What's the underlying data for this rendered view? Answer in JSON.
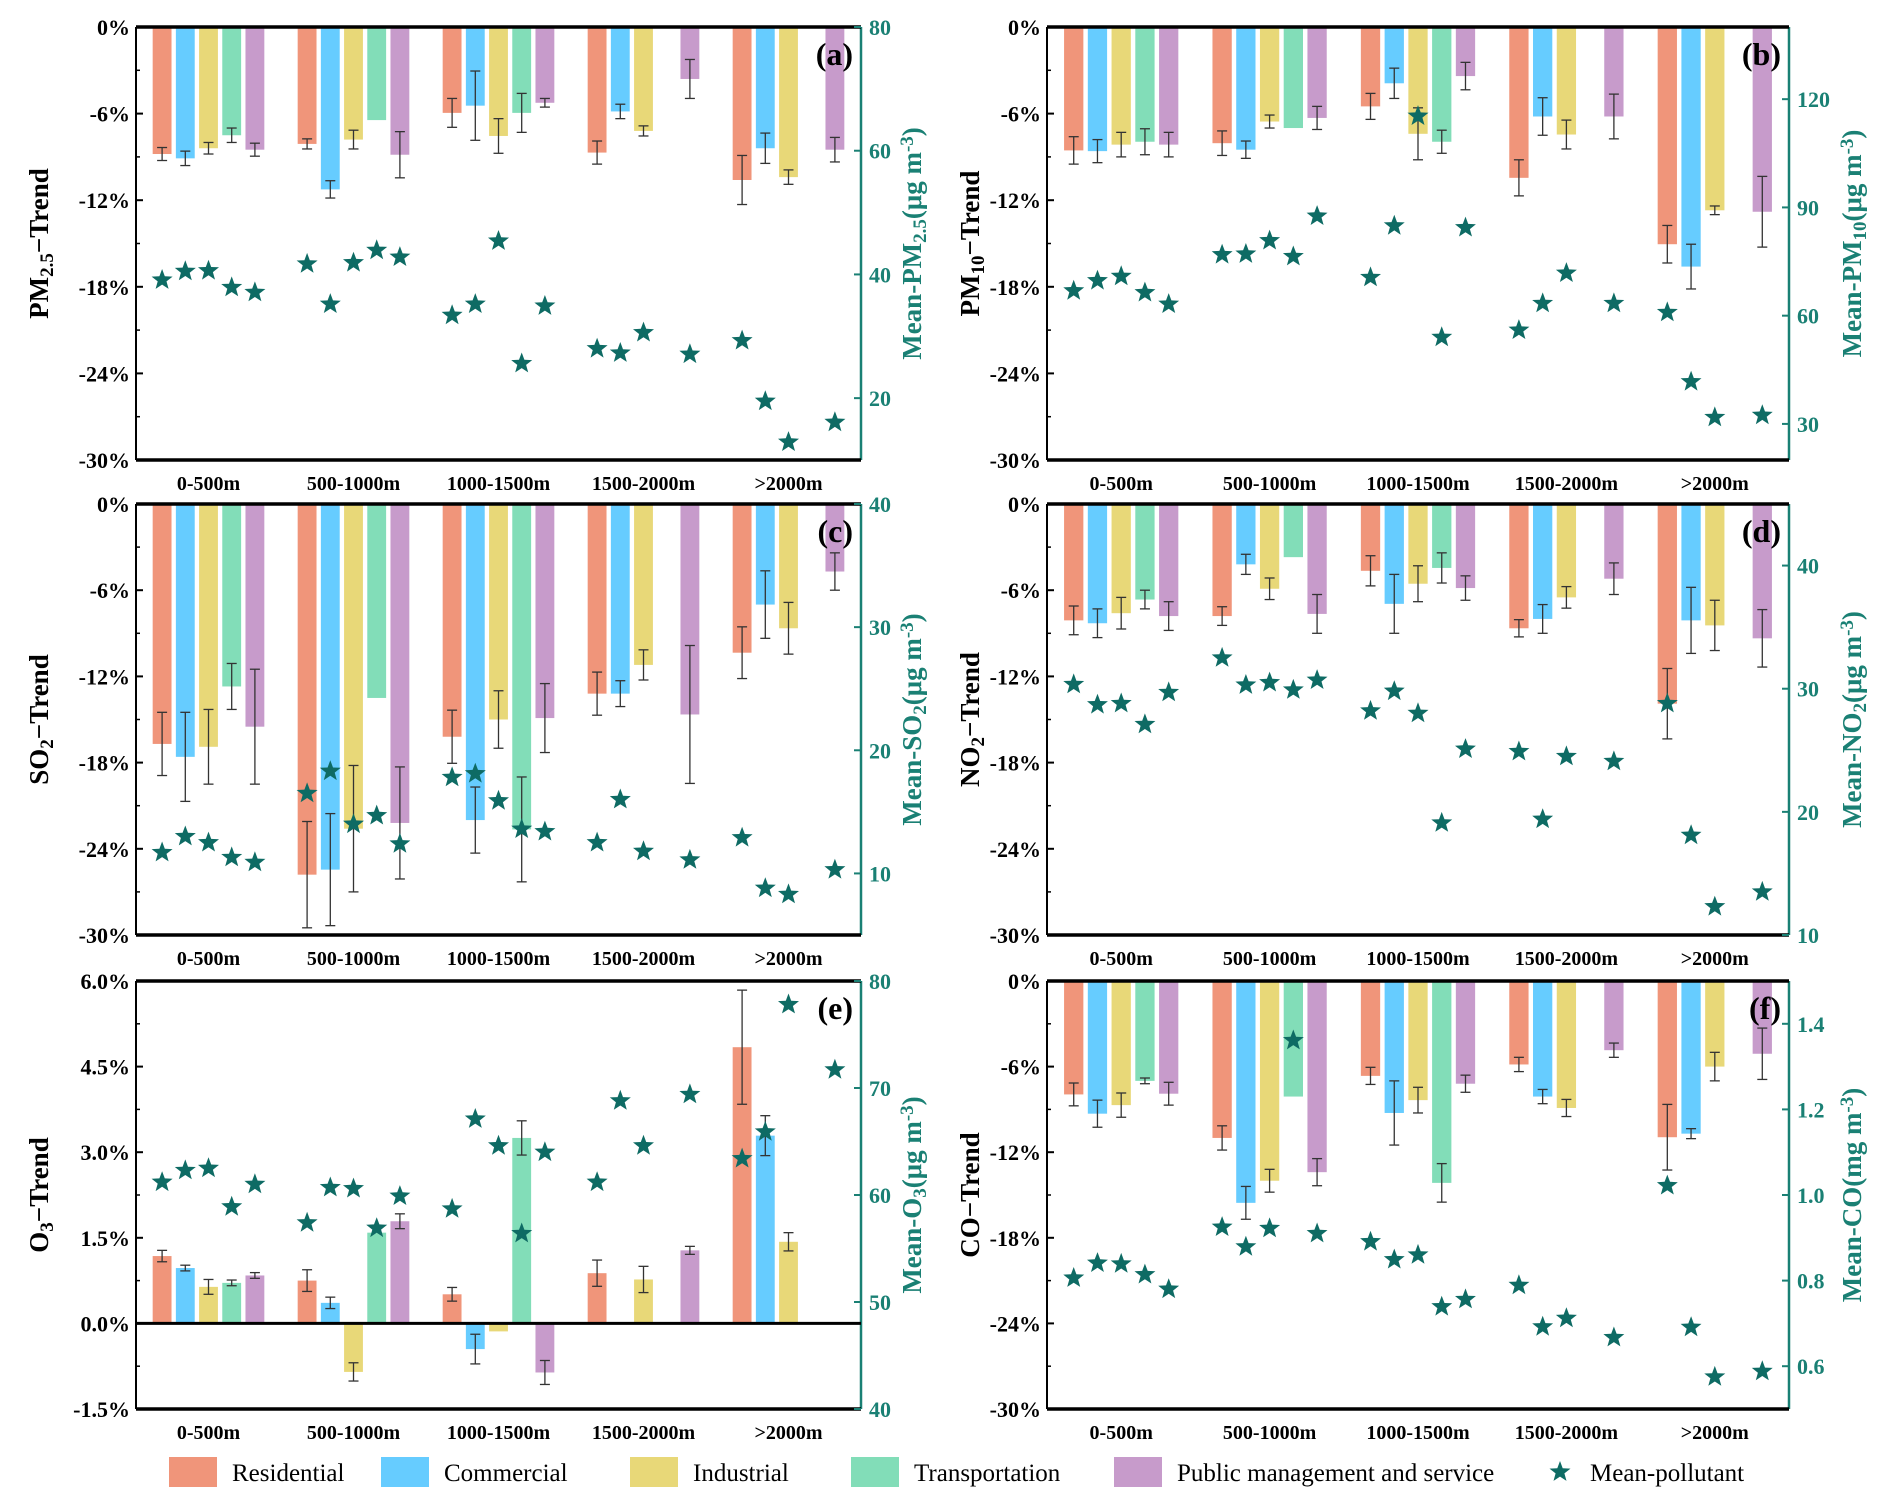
{
  "legend": {
    "series": [
      {
        "name": "Residential",
        "color": "#F0957A"
      },
      {
        "name": "Commercial",
        "color": "#66CCFF"
      },
      {
        "name": "Industrial",
        "color": "#E8D878"
      },
      {
        "name": "Transportation",
        "color": "#82DDB8"
      },
      {
        "name": "Public management and service",
        "color": "#C79BCB"
      }
    ],
    "mean": {
      "name": "Mean-pollutant",
      "color": "#0E6B64"
    }
  },
  "right_axis_color": "#1A8074",
  "chart_data": [
    {
      "type": "bar",
      "panel_label": "(a)",
      "categories": [
        "0-500m",
        "500-1000m",
        "1000-1500m",
        "1500-2000m",
        ">2000m"
      ],
      "ylabel": [
        {
          "t": "PM"
        },
        {
          "t": "2.5",
          "s": "sub"
        },
        {
          "t": "−Trend"
        }
      ],
      "ylim": [
        -30,
        0
      ],
      "yticks": [
        0,
        -6,
        -12,
        -18,
        -24,
        -30
      ],
      "yticklabels": [
        "0%",
        "-6%",
        "-12%",
        "-18%",
        "-24%",
        "-30%"
      ],
      "y2label": [
        {
          "t": "Mean-PM"
        },
        {
          "t": "2.5",
          "s": "sub"
        },
        {
          "t": "(μg m"
        },
        {
          "t": "-3",
          "s": "sup"
        },
        {
          "t": ")"
        }
      ],
      "y2lim": [
        10,
        80
      ],
      "y2ticks": [
        20,
        40,
        60,
        80
      ],
      "y2ticklabels": [
        "20",
        "40",
        "60",
        "80"
      ],
      "values": [
        [
          -8.8,
          -8.1,
          -5.95,
          -8.7,
          -10.6
        ],
        [
          -9.1,
          -11.25,
          -5.45,
          -5.85,
          -8.4
        ],
        [
          -8.4,
          -7.8,
          -7.55,
          -7.2,
          -10.4
        ],
        [
          -7.5,
          -6.45,
          -5.95,
          null,
          null
        ],
        [
          -8.5,
          -8.85,
          -5.25,
          -3.6,
          -8.5
        ]
      ],
      "errors": [
        [
          0.45,
          0.35,
          1.0,
          0.8,
          1.7
        ],
        [
          0.5,
          0.6,
          2.4,
          0.5,
          1.05
        ],
        [
          0.4,
          0.65,
          1.2,
          0.35,
          0.5
        ],
        [
          0.5,
          null,
          1.35,
          null,
          null
        ],
        [
          0.45,
          1.6,
          0.3,
          1.35,
          0.85
        ]
      ],
      "means": [
        [
          39.1,
          41.7,
          33.4,
          28.0,
          29.3
        ],
        [
          40.5,
          35.2,
          35.2,
          27.3,
          19.5
        ],
        [
          40.6,
          41.9,
          45.4,
          30.6,
          12.9
        ],
        [
          37.9,
          43.9,
          25.6,
          null,
          null
        ],
        [
          37.1,
          42.8,
          34.9,
          27.1,
          16.1
        ]
      ]
    },
    {
      "type": "bar",
      "panel_label": "(b)",
      "categories": [
        "0-500m",
        "500-1000m",
        "1000-1500m",
        "1500-2000m",
        ">2000m"
      ],
      "ylabel": [
        {
          "t": "PM"
        },
        {
          "t": "10",
          "s": "sub"
        },
        {
          "t": "−Trend"
        }
      ],
      "ylim": [
        -30,
        0
      ],
      "yticks": [
        0,
        -6,
        -12,
        -18,
        -24,
        -30
      ],
      "yticklabels": [
        "0%",
        "-6%",
        "-12%",
        "-18%",
        "-24%",
        "-30%"
      ],
      "y2label": [
        {
          "t": "Mean-PM"
        },
        {
          "t": "10",
          "s": "sub"
        },
        {
          "t": "(μg m"
        },
        {
          "t": "-3",
          "s": "sup"
        },
        {
          "t": ")"
        }
      ],
      "y2lim": [
        20,
        140
      ],
      "y2ticks": [
        30,
        60,
        90,
        120
      ],
      "y2ticklabels": [
        "30",
        "60",
        "90",
        "120"
      ],
      "values": [
        [
          -8.55,
          -8.05,
          -5.5,
          -10.45,
          -15.05
        ],
        [
          -8.6,
          -8.5,
          -3.9,
          -6.2,
          -16.6
        ],
        [
          -8.15,
          -6.55,
          -7.4,
          -7.45,
          -12.7
        ],
        [
          -7.95,
          -7.0,
          -7.95,
          null,
          null
        ],
        [
          -8.15,
          -6.3,
          -3.4,
          -6.2,
          -12.8
        ]
      ],
      "errors": [
        [
          0.95,
          0.85,
          0.9,
          1.25,
          1.3
        ],
        [
          0.8,
          0.6,
          1.05,
          1.3,
          1.55
        ],
        [
          0.85,
          0.45,
          1.8,
          1.0,
          0.3
        ],
        [
          0.9,
          null,
          0.8,
          null,
          null
        ],
        [
          0.85,
          0.8,
          0.95,
          1.55,
          2.45
        ]
      ],
      "means": [
        [
          66.9,
          76.9,
          70.6,
          56.0,
          60.9
        ],
        [
          69.7,
          77.1,
          84.9,
          63.4,
          41.7
        ],
        [
          70.9,
          80.8,
          115.3,
          71.8,
          31.8
        ],
        [
          66.4,
          76.4,
          54.0,
          null,
          null
        ],
        [
          63.2,
          87.6,
          84.4,
          63.4,
          32.4
        ]
      ]
    },
    {
      "type": "bar",
      "panel_label": "(c)",
      "categories": [
        "0-500m",
        "500-1000m",
        "1000-1500m",
        "1500-2000m",
        ">2000m"
      ],
      "ylabel": [
        {
          "t": "SO"
        },
        {
          "t": "2",
          "s": "sub"
        },
        {
          "t": "−Trend"
        }
      ],
      "ylim": [
        -30,
        0
      ],
      "yticks": [
        0,
        -6,
        -12,
        -18,
        -24,
        -30
      ],
      "yticklabels": [
        "0%",
        "-6%",
        "-12%",
        "-18%",
        "-24%",
        "-30%"
      ],
      "y2label": [
        {
          "t": "Mean-SO"
        },
        {
          "t": "2",
          "s": "sub"
        },
        {
          "t": "(μg m"
        },
        {
          "t": "-3",
          "s": "sup"
        },
        {
          "t": ")"
        }
      ],
      "y2lim": [
        5,
        40
      ],
      "y2ticks": [
        10,
        20,
        30,
        40
      ],
      "y2ticklabels": [
        "10",
        "20",
        "30",
        "40"
      ],
      "values": [
        [
          -16.7,
          -25.8,
          -16.2,
          -13.2,
          -10.35
        ],
        [
          -17.6,
          -25.45,
          -22.0,
          -13.2,
          -7.0
        ],
        [
          -16.9,
          -22.6,
          -15.0,
          -11.2,
          -8.65
        ],
        [
          -12.7,
          -13.5,
          -22.65,
          null,
          null
        ],
        [
          -15.5,
          -22.2,
          -14.9,
          -14.65,
          -4.7
        ]
      ],
      "errors": [
        [
          2.2,
          3.7,
          1.85,
          1.5,
          1.8
        ],
        [
          3.1,
          3.9,
          2.3,
          0.9,
          2.35
        ],
        [
          2.6,
          4.4,
          2.0,
          1.05,
          1.8
        ],
        [
          1.6,
          null,
          3.65,
          null,
          null
        ],
        [
          4.0,
          3.9,
          2.4,
          4.8,
          1.3
        ]
      ],
      "means": [
        [
          11.7,
          16.5,
          17.8,
          12.5,
          12.9
        ],
        [
          13.0,
          18.3,
          18.1,
          16.0,
          8.8
        ],
        [
          12.5,
          14.0,
          15.9,
          11.8,
          8.3
        ],
        [
          11.3,
          14.7,
          13.6,
          null,
          null
        ],
        [
          10.9,
          12.4,
          13.4,
          11.1,
          10.3
        ]
      ]
    },
    {
      "type": "bar",
      "panel_label": "(d)",
      "categories": [
        "0-500m",
        "500-1000m",
        "1000-1500m",
        "1500-2000m",
        ">2000m"
      ],
      "ylabel": [
        {
          "t": "NO"
        },
        {
          "t": "2",
          "s": "sub"
        },
        {
          "t": "−Trend"
        }
      ],
      "ylim": [
        -30,
        0
      ],
      "yticks": [
        0,
        -6,
        -12,
        -18,
        -24,
        -30
      ],
      "yticklabels": [
        "0%",
        "-6%",
        "-12%",
        "-18%",
        "-24%",
        "-30%"
      ],
      "y2label": [
        {
          "t": "Mean-NO"
        },
        {
          "t": "2",
          "s": "sub"
        },
        {
          "t": "(μg m"
        },
        {
          "t": "-3",
          "s": "sup"
        },
        {
          "t": ")"
        }
      ],
      "y2lim": [
        10,
        45
      ],
      "y2ticks": [
        10,
        20,
        30,
        40
      ],
      "y2ticklabels": [
        "10",
        "20",
        "30",
        "40"
      ],
      "values": [
        [
          -8.1,
          -7.8,
          -4.65,
          -8.65,
          -13.9
        ],
        [
          -8.3,
          -4.2,
          -6.95,
          -8.0,
          -8.1
        ],
        [
          -7.6,
          -5.9,
          -5.55,
          -6.5,
          -8.45
        ],
        [
          -6.65,
          -3.7,
          -4.45,
          null,
          null
        ],
        [
          -7.8,
          -7.65,
          -5.85,
          -5.2,
          -9.35
        ]
      ],
      "errors": [
        [
          1.0,
          0.65,
          1.05,
          0.6,
          2.45
        ],
        [
          1.0,
          0.7,
          2.05,
          1.0,
          2.3
        ],
        [
          1.1,
          0.75,
          1.25,
          0.75,
          1.75
        ],
        [
          0.65,
          null,
          1.05,
          null,
          null
        ],
        [
          1.0,
          1.35,
          0.85,
          1.1,
          2.0
        ]
      ],
      "means": [
        [
          30.35,
          32.5,
          28.2,
          24.9,
          28.8
        ],
        [
          28.7,
          30.3,
          29.8,
          19.4,
          18.1
        ],
        [
          28.8,
          30.5,
          28.0,
          24.5,
          12.3
        ],
        [
          27.1,
          29.9,
          19.1,
          null,
          null
        ],
        [
          29.7,
          30.7,
          25.1,
          24.1,
          13.5
        ]
      ]
    },
    {
      "type": "bar",
      "panel_label": "(e)",
      "categories": [
        "0-500m",
        "500-1000m",
        "1000-1500m",
        "1500-2000m",
        ">2000m"
      ],
      "ylabel": [
        {
          "t": "O"
        },
        {
          "t": "3",
          "s": "sub"
        },
        {
          "t": "−Trend"
        }
      ],
      "ylim": [
        -1.5,
        6
      ],
      "yticks": [
        6,
        4.5,
        3,
        1.5,
        0,
        -1.5
      ],
      "yticklabels": [
        "6.0%",
        "4.5%",
        "3.0%",
        "1.5%",
        "0.0%",
        "-1.5%"
      ],
      "y2label": [
        {
          "t": "Mean-O"
        },
        {
          "t": "3",
          "s": "sub"
        },
        {
          "t": "(μg m"
        },
        {
          "t": "-3",
          "s": "sup"
        },
        {
          "t": ")"
        }
      ],
      "y2lim": [
        40,
        80
      ],
      "y2ticks": [
        40,
        50,
        60,
        70,
        80
      ],
      "y2ticklabels": [
        "40",
        "50",
        "60",
        "70",
        "80"
      ],
      "values": [
        [
          1.18,
          0.75,
          0.51,
          0.88,
          4.84
        ],
        [
          0.97,
          0.36,
          -0.45,
          null,
          3.29
        ],
        [
          0.64,
          -0.85,
          -0.14,
          0.77,
          1.43
        ],
        [
          0.71,
          1.59,
          3.25,
          null,
          null
        ],
        [
          0.84,
          1.79,
          -0.86,
          1.28,
          null
        ]
      ],
      "errors": [
        [
          0.1,
          0.19,
          0.12,
          0.23,
          1.0
        ],
        [
          0.05,
          0.1,
          0.26,
          null,
          0.35
        ],
        [
          0.13,
          0.16,
          null,
          0.23,
          0.16
        ],
        [
          0.05,
          null,
          0.3,
          null,
          null
        ],
        [
          0.05,
          0.13,
          0.21,
          0.07,
          null
        ]
      ],
      "means": [
        [
          61.2,
          57.4,
          58.7,
          61.2,
          63.4
        ],
        [
          62.3,
          60.7,
          67.1,
          68.8,
          65.9
        ],
        [
          62.5,
          60.6,
          64.6,
          64.6,
          77.8
        ],
        [
          58.9,
          56.9,
          56.4,
          null,
          null
        ],
        [
          61.0,
          59.9,
          64.0,
          69.4,
          71.7
        ]
      ]
    },
    {
      "type": "bar",
      "panel_label": "(f)",
      "categories": [
        "0-500m",
        "500-1000m",
        "1000-1500m",
        "1500-2000m",
        ">2000m"
      ],
      "ylabel": [
        {
          "t": "CO−Trend"
        }
      ],
      "ylim": [
        -30,
        0
      ],
      "yticks": [
        0,
        -6,
        -12,
        -18,
        -24,
        -30
      ],
      "yticklabels": [
        "0%",
        "-6%",
        "-12%",
        "-18%",
        "-24%",
        "-30%"
      ],
      "y2label": [
        {
          "t": "Mean-CO(mg m"
        },
        {
          "t": "-3",
          "s": "sup"
        },
        {
          "t": ")"
        }
      ],
      "y2lim": [
        0.5,
        1.5
      ],
      "y2ticks": [
        0.6,
        0.8,
        1.0,
        1.2,
        1.4
      ],
      "y2ticklabels": [
        "0.6",
        "0.8",
        "1.0",
        "1.2",
        "1.4"
      ],
      "values": [
        [
          -7.95,
          -11.0,
          -6.65,
          -5.85,
          -10.95
        ],
        [
          -9.3,
          -15.55,
          -9.25,
          -8.1,
          -10.7
        ],
        [
          -8.7,
          -14.0,
          -8.35,
          -8.9,
          -6.0
        ],
        [
          -7.0,
          -8.1,
          -14.15,
          null,
          null
        ],
        [
          -7.9,
          -13.4,
          -7.2,
          -4.85,
          -5.1
        ]
      ],
      "errors": [
        [
          0.8,
          0.85,
          0.6,
          0.5,
          2.3
        ],
        [
          0.95,
          1.15,
          2.25,
          0.5,
          0.35
        ],
        [
          0.85,
          0.8,
          0.9,
          0.6,
          1.0
        ],
        [
          0.2,
          null,
          1.35,
          null,
          null
        ],
        [
          0.8,
          0.95,
          0.6,
          0.5,
          1.8
        ]
      ],
      "means": [
        [
          0.806,
          0.925,
          0.891,
          0.789,
          1.022
        ],
        [
          0.841,
          0.879,
          0.849,
          0.692,
          0.691
        ],
        [
          0.839,
          0.922,
          0.86,
          0.712,
          0.575
        ],
        [
          0.814,
          1.361,
          0.739,
          null,
          null
        ],
        [
          0.78,
          0.91,
          0.756,
          0.667,
          0.588
        ]
      ]
    }
  ]
}
